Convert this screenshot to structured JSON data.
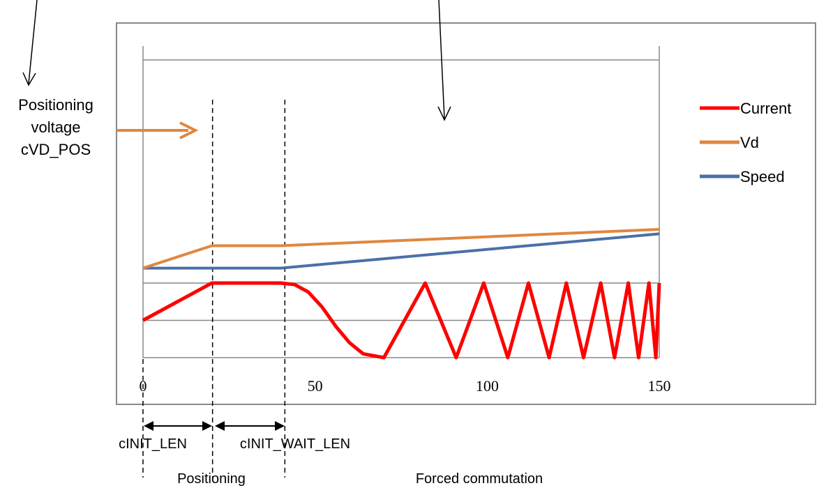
{
  "chart_data": {
    "type": "line",
    "x_ticks": [
      0,
      50,
      100,
      150
    ],
    "xlim": [
      0,
      150
    ],
    "grid": true,
    "legend_position": "right",
    "series": [
      {
        "name": "Current",
        "color": "#ff0000",
        "points": [
          [
            0,
            0.5
          ],
          [
            20,
            1.0
          ],
          [
            40,
            1.0
          ],
          [
            44,
            0.98
          ],
          [
            48,
            0.88
          ],
          [
            52,
            0.68
          ],
          [
            56,
            0.42
          ],
          [
            60,
            0.2
          ],
          [
            64,
            0.05
          ],
          [
            70,
            0.0
          ],
          [
            76,
            0.5
          ],
          [
            82,
            1.0
          ],
          [
            86.5,
            0.5
          ],
          [
            91,
            0.0
          ],
          [
            95,
            0.5
          ],
          [
            99,
            1.0
          ],
          [
            102.5,
            0.5
          ],
          [
            106,
            0.0
          ],
          [
            109,
            0.5
          ],
          [
            112,
            1.0
          ],
          [
            115,
            0.5
          ],
          [
            118,
            0.0
          ],
          [
            120.5,
            0.5
          ],
          [
            123,
            1.0
          ],
          [
            125.5,
            0.5
          ],
          [
            128,
            0.0
          ],
          [
            130.5,
            0.5
          ],
          [
            133,
            1.0
          ],
          [
            135,
            0.5
          ],
          [
            137,
            0.0
          ],
          [
            139,
            0.5
          ],
          [
            141,
            1.0
          ],
          [
            142.5,
            0.5
          ],
          [
            144,
            0.0
          ],
          [
            145.5,
            0.5
          ],
          [
            147,
            1.0
          ],
          [
            148,
            0.5
          ],
          [
            149,
            0.0
          ],
          [
            150,
            1.0
          ]
        ]
      },
      {
        "name": "Vd",
        "color": "#e0873f",
        "points": [
          [
            0,
            1.2
          ],
          [
            20,
            1.5
          ],
          [
            40,
            1.5
          ],
          [
            150,
            1.72
          ]
        ]
      },
      {
        "name": "Speed",
        "color": "#4a70a8",
        "points": [
          [
            0,
            1.2
          ],
          [
            40,
            1.2
          ],
          [
            150,
            1.66
          ]
        ]
      }
    ],
    "annotations": {
      "positioning_voltage": [
        "Positioning",
        "voltage",
        "cVD_POS"
      ],
      "init_len": "cINIT_LEN",
      "init_wait_len": "cINIT_WAIT_LEN",
      "phase_positioning": "Positioning",
      "phase_forced": "Forced commutation"
    },
    "markers_x": [
      20,
      40
    ]
  },
  "colors": {
    "grid": "#888888",
    "frame": "#888888",
    "arrow": "#e0873f"
  }
}
